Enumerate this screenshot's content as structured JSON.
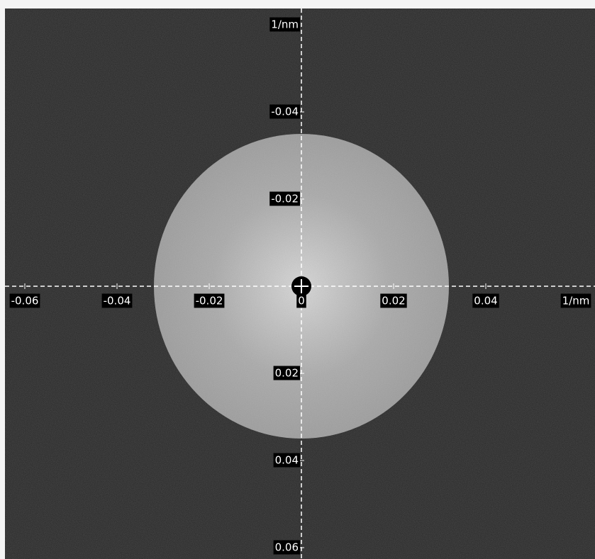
{
  "x_axis": {
    "unit": "1/nm",
    "ticks": [
      -0.06,
      -0.04,
      -0.02,
      0,
      0.02,
      0.04
    ]
  },
  "y_axis": {
    "unit": "1/nm",
    "ticks": [
      -0.04,
      -0.02,
      0.02,
      0.04,
      0.06
    ]
  }
}
